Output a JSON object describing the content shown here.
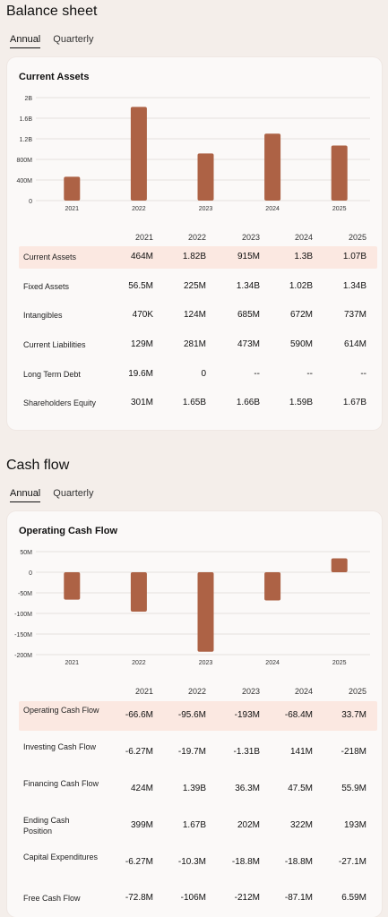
{
  "balance": {
    "title": "Balance sheet",
    "tabs": [
      "Annual",
      "Quarterly"
    ],
    "card_title": "Current Assets",
    "years": [
      "2021",
      "2022",
      "2023",
      "2024",
      "2025"
    ],
    "rows": [
      {
        "label": "Current Assets",
        "values": [
          "464M",
          "1.82B",
          "915M",
          "1.3B",
          "1.07B"
        ]
      },
      {
        "label": "Fixed Assets",
        "values": [
          "56.5M",
          "225M",
          "1.34B",
          "1.02B",
          "1.34B"
        ]
      },
      {
        "label": "Intangibles",
        "values": [
          "470K",
          "124M",
          "685M",
          "672M",
          "737M"
        ]
      },
      {
        "label": "Current Liabilities",
        "values": [
          "129M",
          "281M",
          "473M",
          "590M",
          "614M"
        ]
      },
      {
        "label": "Long Term Debt",
        "values": [
          "19.6M",
          "0",
          "--",
          "--",
          "--"
        ]
      },
      {
        "label": "Shareholders Equity",
        "values": [
          "301M",
          "1.65B",
          "1.66B",
          "1.59B",
          "1.67B"
        ]
      }
    ]
  },
  "cashflow": {
    "title": "Cash flow",
    "tabs": [
      "Annual",
      "Quarterly"
    ],
    "card_title": "Operating Cash Flow",
    "years": [
      "2021",
      "2022",
      "2023",
      "2024",
      "2025"
    ],
    "rows": [
      {
        "label": "Operating Cash Flow",
        "values": [
          "-66.6M",
          "-95.6M",
          "-193M",
          "-68.4M",
          "33.7M"
        ]
      },
      {
        "label": "Investing Cash Flow",
        "values": [
          "-6.27M",
          "-19.7M",
          "-1.31B",
          "141M",
          "-218M"
        ]
      },
      {
        "label": "Financing Cash Flow",
        "values": [
          "424M",
          "1.39B",
          "36.3M",
          "47.5M",
          "55.9M"
        ]
      },
      {
        "label": "Ending Cash Position",
        "values": [
          "399M",
          "1.67B",
          "202M",
          "322M",
          "193M"
        ]
      },
      {
        "label": "Capital Expenditures",
        "values": [
          "-6.27M",
          "-10.3M",
          "-18.8M",
          "-18.8M",
          "-27.1M"
        ]
      },
      {
        "label": "Free Cash Flow",
        "values": [
          "-72.8M",
          "-106M",
          "-212M",
          "-87.1M",
          "6.59M"
        ]
      }
    ]
  },
  "chart_data": [
    {
      "type": "bar",
      "title": "Current Assets",
      "categories": [
        "2021",
        "2022",
        "2023",
        "2024",
        "2025"
      ],
      "values": [
        464,
        1820,
        915,
        1300,
        1070
      ],
      "unit": "M",
      "yticks": [
        "0",
        "400M",
        "800M",
        "1.2B",
        "1.6B",
        "2B"
      ],
      "ylim": [
        0,
        2000
      ],
      "bar_color": "#ad6245",
      "grid": true
    },
    {
      "type": "bar",
      "title": "Operating Cash Flow",
      "categories": [
        "2021",
        "2022",
        "2023",
        "2024",
        "2025"
      ],
      "values": [
        -66.6,
        -95.6,
        -193,
        -68.4,
        33.7
      ],
      "unit": "M",
      "yticks": [
        "-200M",
        "-150M",
        "-100M",
        "-50M",
        "0",
        "50M"
      ],
      "ylim": [
        -200,
        50
      ],
      "bar_color": "#ad6245",
      "grid": true
    }
  ]
}
